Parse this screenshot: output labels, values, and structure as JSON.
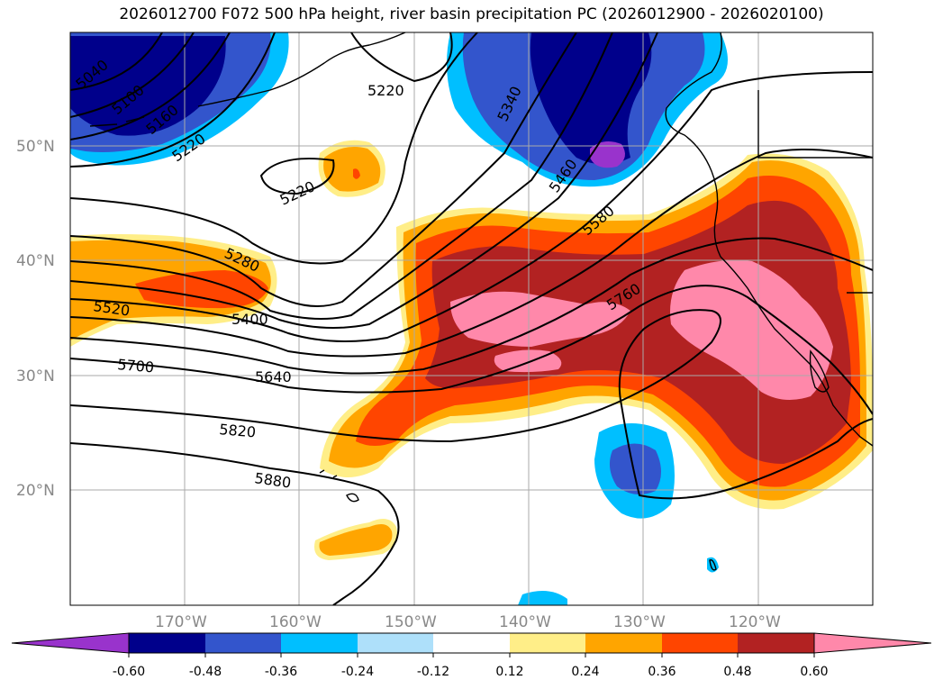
{
  "title": "2026012700 F072 500 hPa height, river basin precipitation PC (2026012900 - 2026020100)",
  "lat_labels": [
    "50°N",
    "40°N",
    "30°N",
    "20°N"
  ],
  "lon_labels": [
    "170°W",
    "160°W",
    "150°W",
    "140°W",
    "130°W",
    "120°W"
  ],
  "contour_labels": [
    "5040",
    "5100",
    "5160",
    "5220",
    "5220",
    "5220",
    "5280",
    "5340",
    "5400",
    "5460",
    "5520",
    "5580",
    "5640",
    "5700",
    "5760",
    "5820",
    "5880"
  ],
  "colorbar": {
    "ticks": [
      "-0.60",
      "-0.48",
      "-0.36",
      "-0.24",
      "-0.12",
      "0.12",
      "0.24",
      "0.36",
      "0.48",
      "0.60"
    ],
    "colors": [
      "#9933cc",
      "#00008b",
      "#3355cc",
      "#00bfff",
      "#aee0fa",
      "#ffffff",
      "#ffee88",
      "#ffa500",
      "#ff4500",
      "#b22222",
      "#ff88aa"
    ]
  }
}
